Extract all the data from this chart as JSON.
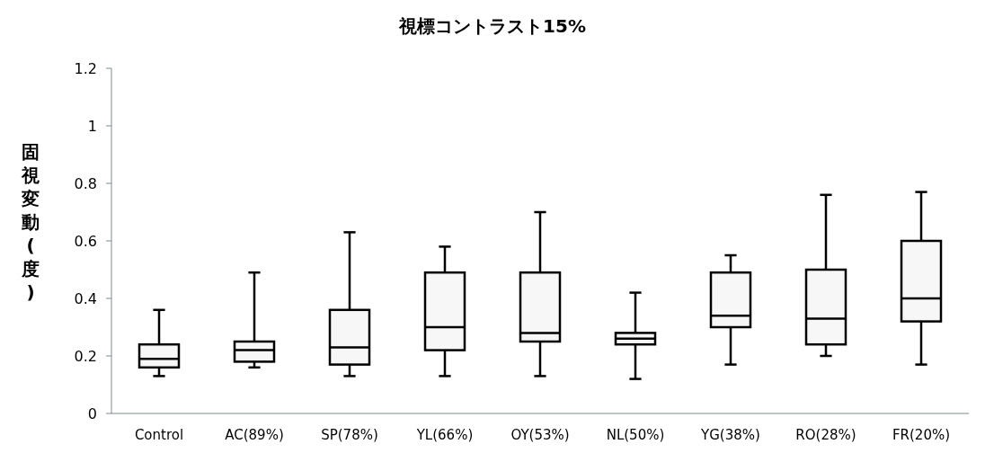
{
  "chart_data": {
    "type": "box",
    "title": "視標コントラスト15%",
    "ylabel": "固視変動(度)",
    "categories": [
      "Control",
      "AC(89%)",
      "SP(78%)",
      "YL(66%)",
      "OY(53%)",
      "NL(50%)",
      "YG(38%)",
      "RO(28%)",
      "FR(20%)"
    ],
    "boxes": [
      {
        "low": 0.13,
        "q1": 0.16,
        "median": 0.19,
        "q3": 0.24,
        "high": 0.36
      },
      {
        "low": 0.16,
        "q1": 0.18,
        "median": 0.22,
        "q3": 0.25,
        "high": 0.49
      },
      {
        "low": 0.13,
        "q1": 0.17,
        "median": 0.23,
        "q3": 0.36,
        "high": 0.63
      },
      {
        "low": 0.13,
        "q1": 0.22,
        "median": 0.3,
        "q3": 0.49,
        "high": 0.58
      },
      {
        "low": 0.13,
        "q1": 0.25,
        "median": 0.28,
        "q3": 0.49,
        "high": 0.7
      },
      {
        "low": 0.12,
        "q1": 0.24,
        "median": 0.26,
        "q3": 0.28,
        "high": 0.42
      },
      {
        "low": 0.17,
        "q1": 0.3,
        "median": 0.34,
        "q3": 0.49,
        "high": 0.55
      },
      {
        "low": 0.2,
        "q1": 0.24,
        "median": 0.33,
        "q3": 0.5,
        "high": 0.76
      },
      {
        "low": 0.17,
        "q1": 0.32,
        "median": 0.4,
        "q3": 0.6,
        "high": 0.77
      }
    ],
    "color": "#000000",
    "ylim": [
      0,
      1.2
    ],
    "yticks": [
      0,
      0.2,
      0.4,
      0.6,
      0.8,
      1,
      1.2
    ],
    "grid": false,
    "legend": false
  }
}
